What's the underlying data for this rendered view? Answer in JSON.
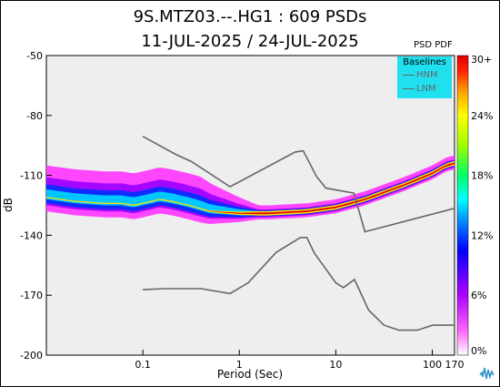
{
  "title_line1": "9S.MTZ03.--.HG1 : 609 PSDs",
  "title_line2": "11-JUL-2025 / 24-JUL-2025",
  "colorbar_title": "PSD PDF",
  "legend": {
    "title": "Baselines",
    "items": [
      {
        "label": "HNM",
        "color": "#666666"
      },
      {
        "label": "LNM",
        "color": "#666666"
      }
    ]
  },
  "colors": {
    "plot_background": "#eeeeee",
    "baseline_lines": "#666666",
    "legend_background": "#20e0f0"
  },
  "chart_data": {
    "type": "heatmap",
    "xlabel": "Period (Sec)",
    "ylabel": "dB",
    "x_scale": "log",
    "xlim": [
      0.01,
      170
    ],
    "ylim": [
      -200,
      -50
    ],
    "x_ticks": [
      0.1,
      1,
      10,
      100,
      170
    ],
    "x_tick_labels": [
      "0.1",
      "1",
      "10",
      "100",
      "170"
    ],
    "y_ticks": [
      -50,
      -80,
      -110,
      -140,
      -170,
      -200
    ],
    "y_tick_labels": [
      "-50",
      "-80",
      "-110",
      "-140",
      "-170",
      "-200"
    ],
    "grid": false,
    "colorbar": {
      "ticks": [
        "0%",
        "6%",
        "12%",
        "18%",
        "24%",
        "30+"
      ],
      "colors": [
        "#ffffff",
        "#ff33ff",
        "#b000ff",
        "#0000ff",
        "#0090ff",
        "#00ffff",
        "#00ff66",
        "#a0ff00",
        "#ffff00",
        "#ffa000",
        "#ff2000",
        "#e00000"
      ]
    },
    "series": [
      {
        "name": "HNM",
        "x": [
          0.1,
          0.22,
          0.32,
          0.8,
          3.8,
          4.6,
          6.3,
          7.9,
          15.4,
          20,
          170
        ],
        "y": [
          -90.5,
          -99.5,
          -103.1,
          -115.7,
          -98.3,
          -97.7,
          -110.5,
          -116.4,
          -118.9,
          -138.2,
          -126.5
        ]
      },
      {
        "name": "LNM",
        "x": [
          0.1,
          0.17,
          0.4,
          0.8,
          1.24,
          2.4,
          4.3,
          5,
          6,
          10,
          12,
          15.6,
          21.9,
          31.6,
          45,
          70,
          101,
          154,
          170
        ],
        "y": [
          -167.2,
          -166.7,
          -166.7,
          -169.2,
          -163.7,
          -148.6,
          -141.1,
          -141.1,
          -149,
          -163.8,
          -166.2,
          -162.1,
          -177.5,
          -185,
          -187.5,
          -187.5,
          -185,
          -185,
          -185
        ]
      }
    ],
    "pdf_mode": {
      "x": [
        0.01,
        0.02,
        0.04,
        0.06,
        0.08,
        0.1,
        0.15,
        0.2,
        0.3,
        0.5,
        1,
        2,
        5,
        10,
        20,
        50,
        100,
        140,
        170
      ],
      "y": [
        -121,
        -123,
        -124,
        -124,
        -125,
        -124,
        -122,
        -123,
        -125,
        -128,
        -129,
        -129,
        -128,
        -126,
        -122,
        -115,
        -109,
        -105,
        -104
      ]
    }
  }
}
